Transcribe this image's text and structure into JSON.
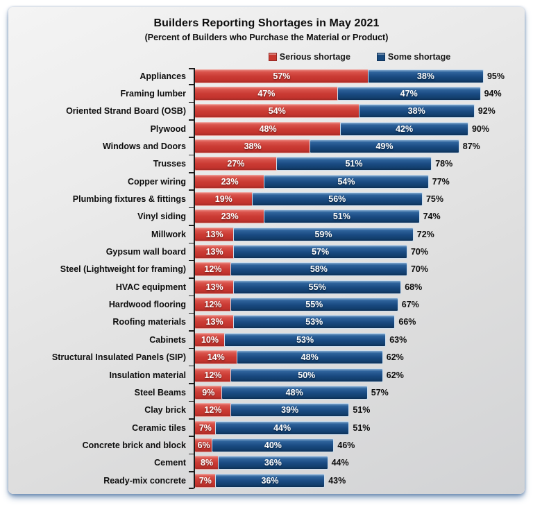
{
  "title": "Builders Reporting Shortages in May 2021",
  "subtitle": "(Percent of Builders who Purchase the Material or Product)",
  "legend": [
    {
      "label": "Serious shortage",
      "color": "#c8382f"
    },
    {
      "label": "Some shortage",
      "color": "#17497d"
    }
  ],
  "colors": {
    "serious_shortage": "#c8382f",
    "some_shortage": "#17497d",
    "panel_background": "#dedede",
    "panel_shadow": "#587ca8",
    "text": "#0d0d0d",
    "bar_label_text": "#ffffff"
  },
  "chart_data": {
    "type": "bar",
    "orientation": "horizontal",
    "stacked": true,
    "title": "Builders Reporting Shortages in May 2021",
    "subtitle": "(Percent of Builders who Purchase the Material or Product)",
    "value_suffix": "%",
    "xlim": [
      0,
      100
    ],
    "grid": false,
    "legend_position": "top",
    "categories": [
      "Appliances",
      "Framing lumber",
      "Oriented Strand Board (OSB)",
      "Plywood",
      "Windows and Doors",
      "Trusses",
      "Copper wiring",
      "Plumbing fixtures & fittings",
      "Vinyl siding",
      "Millwork",
      "Gypsum wall board",
      "Steel (Lightweight for framing)",
      "HVAC equipment",
      "Hardwood flooring",
      "Roofing materials",
      "Cabinets",
      "Structural Insulated Panels (SIP)",
      "Insulation material",
      "Steel Beams",
      "Clay brick",
      "Ceramic tiles",
      "Concrete brick and block",
      "Cement",
      "Ready-mix concrete"
    ],
    "series": [
      {
        "name": "Serious shortage",
        "color": "#c8382f",
        "values": [
          57,
          47,
          54,
          48,
          38,
          27,
          23,
          19,
          23,
          13,
          13,
          12,
          13,
          12,
          13,
          10,
          14,
          12,
          9,
          12,
          7,
          6,
          8,
          7
        ]
      },
      {
        "name": "Some shortage",
        "color": "#17497d",
        "values": [
          38,
          47,
          38,
          42,
          49,
          51,
          54,
          56,
          51,
          59,
          57,
          58,
          55,
          55,
          53,
          53,
          48,
          50,
          48,
          39,
          44,
          40,
          36,
          36
        ]
      }
    ],
    "totals": [
      95,
      94,
      92,
      90,
      87,
      78,
      77,
      75,
      74,
      72,
      70,
      70,
      68,
      67,
      66,
      63,
      62,
      62,
      57,
      51,
      51,
      46,
      44,
      43
    ]
  }
}
